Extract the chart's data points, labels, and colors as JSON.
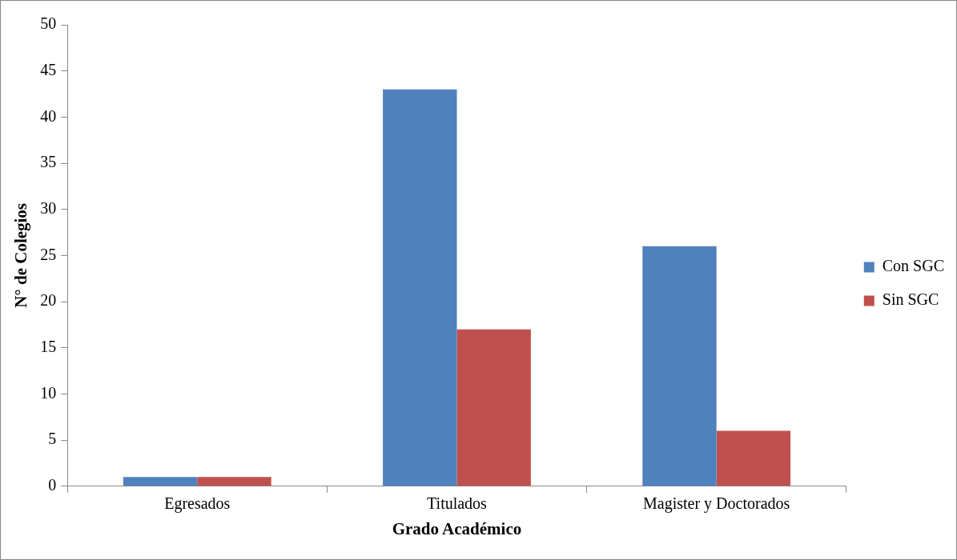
{
  "chart_data": {
    "type": "bar",
    "xlabel": "Grado Académico",
    "ylabel": "N° de Colegios",
    "categories": [
      "Egresados",
      "Titulados",
      "Magister y Doctorados"
    ],
    "series": [
      {
        "name": "Con SGC",
        "color": "#4f81bd",
        "values": [
          1,
          43,
          26
        ]
      },
      {
        "name": "Sin SGC",
        "color": "#c0504d",
        "values": [
          1,
          17,
          6
        ]
      }
    ],
    "ylim": [
      0,
      50
    ],
    "yticks": [
      0,
      5,
      10,
      15,
      20,
      25,
      30,
      35,
      40,
      45,
      50
    ],
    "grid": false,
    "legend": "right"
  }
}
